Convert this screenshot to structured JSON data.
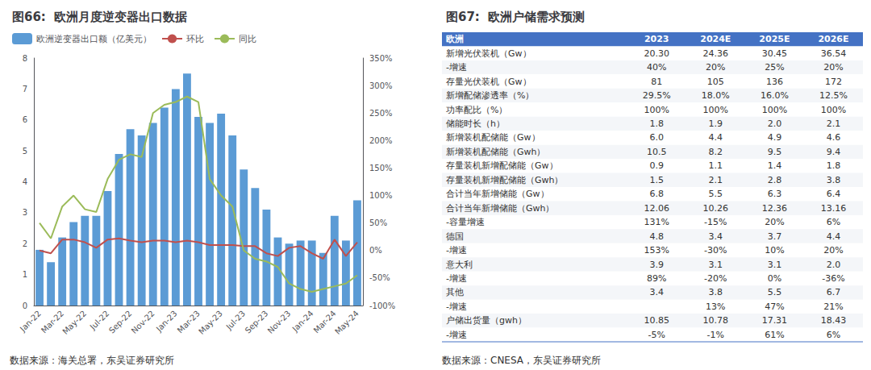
{
  "chart_data": [
    {
      "type": "bar",
      "title": "图66:  欧洲月度逆变器出口数据",
      "annotation": "数据来源：海关总署，东吴证券研究所",
      "categories": [
        "Jan-22",
        null,
        "Mar-22",
        null,
        "May-22",
        null,
        "Jul-22",
        null,
        "Sep-22",
        null,
        "Nov-22",
        null,
        "Jan-23",
        null,
        "Mar-23",
        null,
        "May-23",
        null,
        "Jul-23",
        null,
        "Sep-23",
        null,
        "Nov-23",
        null,
        "Jan-24",
        null,
        "Mar-24",
        null,
        "May-24"
      ],
      "series": [
        {
          "name": "欧洲逆变器出口额（亿美元）",
          "type": "bar",
          "color": "#5B9BD5",
          "values": [
            1.8,
            1.4,
            2.2,
            2.7,
            2.9,
            2.9,
            3.7,
            4.9,
            5.7,
            5.5,
            5.9,
            6.4,
            7.0,
            7.5,
            6.1,
            5.9,
            6.2,
            5.5,
            4.4,
            3.8,
            3.1,
            2.2,
            2.0,
            2.1,
            2.1,
            1.7,
            2.9,
            2.1,
            3.4
          ]
        },
        {
          "name": "环比",
          "type": "line",
          "axis": "y2",
          "color": "#C0504D",
          "values": [
            0,
            -5,
            20,
            20,
            15,
            5,
            20,
            22,
            18,
            15,
            18,
            18,
            15,
            18,
            15,
            10,
            10,
            10,
            8,
            8,
            -5,
            -10,
            5,
            8,
            -5,
            -15,
            20,
            -10,
            15
          ]
        },
        {
          "name": "同比",
          "type": "line",
          "axis": "y2",
          "color": "#9BBB59",
          "values": [
            50,
            22,
            80,
            100,
            75,
            70,
            130,
            165,
            175,
            170,
            250,
            265,
            270,
            280,
            270,
            130,
            100,
            80,
            0,
            -15,
            -20,
            -30,
            -60,
            -70,
            -75,
            -70,
            -65,
            -60,
            -45
          ]
        }
      ],
      "ylim": [
        0,
        8
      ],
      "yticks": [
        0,
        1,
        2,
        3,
        4,
        5,
        6,
        7,
        8
      ],
      "y2lim": [
        -100,
        350
      ],
      "y2ticks": [
        {
          "value": -100,
          "label": "-100%"
        },
        {
          "value": -50,
          "label": "-50%"
        },
        {
          "value": 0,
          "label": "0%"
        },
        {
          "value": 50,
          "label": "50%"
        },
        {
          "value": 100,
          "label": "100%"
        },
        {
          "value": 150,
          "label": "150%"
        },
        {
          "value": 200,
          "label": "200%"
        },
        {
          "value": 250,
          "label": "250%"
        },
        {
          "value": 300,
          "label": "300%"
        },
        {
          "value": 350,
          "label": "350%"
        }
      ],
      "grid": false,
      "legend": "upper left"
    },
    {
      "type": "table",
      "title": "图67:  欧洲户储需求预测",
      "annotation": "数据来源：CNESA，东吴证券研究所",
      "color": "#4472C4",
      "columns": [
        "欧洲",
        "2023",
        "2024E",
        "2025E",
        "2026E"
      ],
      "rows": [
        [
          "新增光伏装机（Gw）",
          "20.30",
          "24.36",
          "30.45",
          "36.54"
        ],
        [
          "-增速",
          "40%",
          "20%",
          "25%",
          "20%"
        ],
        [
          "存量光伏装机（Gw）",
          "81",
          "105",
          "136",
          "172"
        ],
        [
          "新增配储渗透率（%）",
          "29.5%",
          "18.0%",
          "16.0%",
          "12.5%"
        ],
        [
          "功率配比（%）",
          "100%",
          "100%",
          "100%",
          "100%"
        ],
        [
          "储能时长（h）",
          "1.8",
          "1.9",
          "2.0",
          "2.1"
        ],
        [
          "新增装机配储能（Gw）",
          "6.0",
          "4.4",
          "4.9",
          "4.6"
        ],
        [
          "新增装机配储能（Gwh）",
          "10.5",
          "8.2",
          "9.5",
          "9.4"
        ],
        [
          "存量装机新增配储能（Gw）",
          "0.9",
          "1.1",
          "1.4",
          "1.8"
        ],
        [
          "存量装机新增配储能（Gwh）",
          "1.5",
          "2.1",
          "2.8",
          "3.8"
        ],
        [
          "合计当年新增储能（Gw）",
          "6.8",
          "5.5",
          "6.3",
          "6.4"
        ],
        [
          "合计当年新增储能（Gwh）",
          "12.06",
          "10.26",
          "12.36",
          "13.16"
        ],
        [
          "-容量增速",
          "131%",
          "-15%",
          "20%",
          "6%"
        ],
        [
          "德国",
          "4.8",
          "3.4",
          "3.7",
          "4.4"
        ],
        [
          "-增速",
          "153%",
          "-30%",
          "10%",
          "20%"
        ],
        [
          "意大利",
          "3.9",
          "3.1",
          "3.1",
          "2.0"
        ],
        [
          "-增速",
          "89%",
          "-20%",
          "0%",
          "-36%"
        ],
        [
          "其他",
          "3.4",
          "3.8",
          "5.5",
          "6.7"
        ],
        [
          "-增速",
          null,
          "13%",
          "47%",
          "21%"
        ],
        [
          "户储出货量（gwh）",
          "10.85",
          "10.78",
          "17.31",
          "18.43"
        ],
        [
          "-增速",
          "-5%",
          "-1%",
          "61%",
          "6%"
        ]
      ]
    }
  ]
}
